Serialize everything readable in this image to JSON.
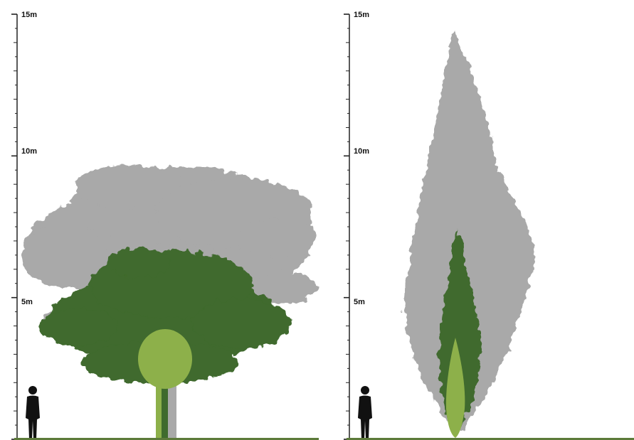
{
  "panels": [
    {
      "id": "left",
      "tree": "broad-crown",
      "scale": {
        "unit": "m",
        "max_height": 15,
        "labels": [
          {
            "value": 15,
            "text": "15m"
          },
          {
            "value": 10,
            "text": "10m"
          },
          {
            "value": 5,
            "text": "5m"
          }
        ]
      },
      "growth_stages": [
        {
          "stage": "young",
          "color": "#8db04a"
        },
        {
          "stage": "intermediate",
          "color": "#3f6b2d"
        },
        {
          "stage": "mature",
          "color": "#a9a9a9"
        }
      ]
    },
    {
      "id": "right",
      "tree": "columnar",
      "scale": {
        "unit": "m",
        "max_height": 15,
        "labels": [
          {
            "value": 15,
            "text": "15m"
          },
          {
            "value": 10,
            "text": "10m"
          },
          {
            "value": 5,
            "text": "5m"
          }
        ]
      },
      "growth_stages": [
        {
          "stage": "young",
          "color": "#8db04a"
        },
        {
          "stage": "intermediate",
          "color": "#3f6b2d"
        },
        {
          "stage": "mature",
          "color": "#a9a9a9"
        }
      ]
    }
  ],
  "colors": {
    "ground": "#5c7a3a",
    "human_silhouette": "#111111",
    "scale_ticks": "#222222"
  }
}
